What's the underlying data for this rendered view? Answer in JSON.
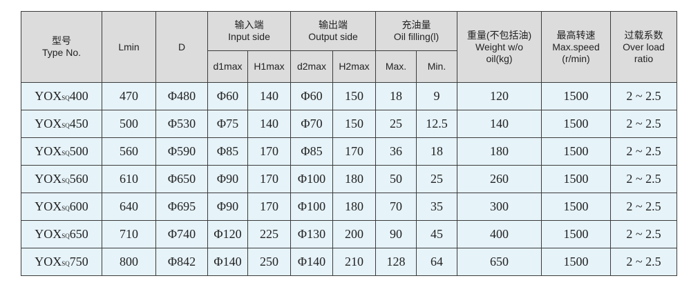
{
  "header": {
    "type_no": {
      "cn": "型号",
      "en": "Type No."
    },
    "lmin": "Lmin",
    "d": "D",
    "input_side": {
      "cn": "输入端",
      "en": "Input side",
      "d1max": "d1max",
      "h1max": "H1max"
    },
    "output_side": {
      "cn": "输出端",
      "en": "Output side",
      "d2max": "d2max",
      "h2max": "H2max"
    },
    "oil_filling": {
      "cn": "充油量",
      "en": "Oil filling(l)",
      "max": "Max.",
      "min": "Min."
    },
    "weight": {
      "cn": "重量(不包括油)",
      "en1": "Weight w/o",
      "en2": "oil(kg)"
    },
    "max_speed": {
      "cn": "最高转速",
      "en1": "Max.speed",
      "en2": "(r/min)"
    },
    "over_load": {
      "cn": "过载系数",
      "en1": "Over load",
      "en2": "ratio"
    }
  },
  "rows": [
    {
      "prefix": "YOX",
      "sub": "SQ",
      "model": "400",
      "lmin": "470",
      "d": "Φ480",
      "d1max": "Φ60",
      "h1max": "140",
      "d2max": "Φ60",
      "h2max": "150",
      "oil_max": "18",
      "oil_min": "9",
      "weight": "120",
      "speed": "1500",
      "ratio": "2 ~ 2.5"
    },
    {
      "prefix": "YOX",
      "sub": "SQ",
      "model": "450",
      "lmin": "500",
      "d": "Φ530",
      "d1max": "Φ75",
      "h1max": "140",
      "d2max": "Φ70",
      "h2max": "150",
      "oil_max": "25",
      "oil_min": "12.5",
      "weight": "140",
      "speed": "1500",
      "ratio": "2 ~ 2.5"
    },
    {
      "prefix": "YOX",
      "sub": "SQ",
      "model": "500",
      "lmin": "560",
      "d": "Φ590",
      "d1max": "Φ85",
      "h1max": "170",
      "d2max": "Φ85",
      "h2max": "170",
      "oil_max": "36",
      "oil_min": "18",
      "weight": "180",
      "speed": "1500",
      "ratio": "2 ~ 2.5"
    },
    {
      "prefix": "YOX",
      "sub": "SQ",
      "model": "560",
      "lmin": "610",
      "d": "Φ650",
      "d1max": "Φ90",
      "h1max": "170",
      "d2max": "Φ100",
      "h2max": "180",
      "oil_max": "50",
      "oil_min": "25",
      "weight": "260",
      "speed": "1500",
      "ratio": "2 ~ 2.5"
    },
    {
      "prefix": "YOX",
      "sub": "SQ",
      "model": "600",
      "lmin": "640",
      "d": "Φ695",
      "d1max": "Φ90",
      "h1max": "170",
      "d2max": "Φ100",
      "h2max": "180",
      "oil_max": "70",
      "oil_min": "35",
      "weight": "300",
      "speed": "1500",
      "ratio": "2 ~ 2.5"
    },
    {
      "prefix": "YOX",
      "sub": "SQ",
      "model": "650",
      "lmin": "710",
      "d": "Φ740",
      "d1max": "Φ120",
      "h1max": "225",
      "d2max": "Φ130",
      "h2max": "200",
      "oil_max": "90",
      "oil_min": "45",
      "weight": "400",
      "speed": "1500",
      "ratio": "2 ~ 2.5"
    },
    {
      "prefix": "YOX",
      "sub": "SQ",
      "model": "750",
      "lmin": "800",
      "d": "Φ842",
      "d1max": "Φ140",
      "h1max": "250",
      "d2max": "Φ140",
      "h2max": "210",
      "oil_max": "128",
      "oil_min": "64",
      "weight": "650",
      "speed": "1500",
      "ratio": "2 ~ 2.5"
    }
  ]
}
